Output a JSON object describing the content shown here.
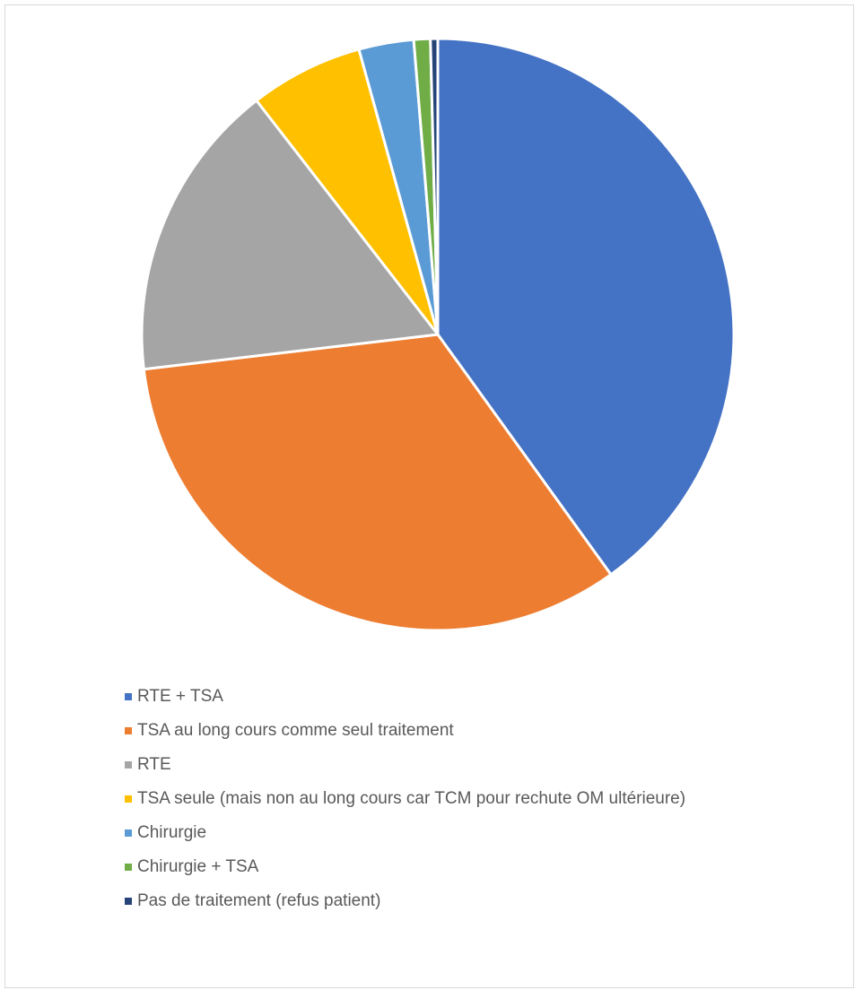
{
  "chart_data": {
    "type": "pie",
    "title": "",
    "start_angle_deg": 0,
    "direction": "clockwise",
    "slices": [
      {
        "label": "RTE + TSA",
        "value": 40.1,
        "color": "#4472C4"
      },
      {
        "label": "TSA au long cours comme seul traitement",
        "value": 33.1,
        "color": "#ED7D31"
      },
      {
        "label": "RTE",
        "value": 16.4,
        "color": "#A5A5A5"
      },
      {
        "label": "TSA seule (mais non au long cours car TCM pour rechute OM ultérieure)",
        "value": 6.2,
        "color": "#FFC000"
      },
      {
        "label": "Chirurgie",
        "value": 3.0,
        "color": "#5B9BD5"
      },
      {
        "label": "Chirurgie + TSA",
        "value": 0.9,
        "color": "#70AD47"
      },
      {
        "label": "Pas de traitement (refus patient)",
        "value": 0.4,
        "color": "#264478"
      }
    ],
    "legend_position": "bottom"
  }
}
